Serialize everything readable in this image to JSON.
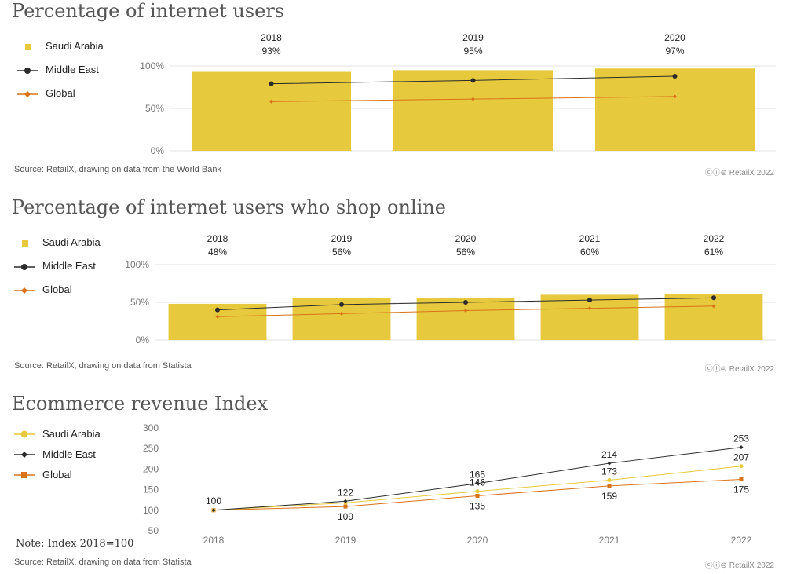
{
  "colors": {
    "saudi": "#e6c93c",
    "middle_east": "#2b2b2b",
    "global": "#d9731a",
    "grid": "#e3e3e3",
    "axis_text": "#777777"
  },
  "credit": {
    "icons": [
      "cc-icon",
      "by-icon",
      "equals-icon"
    ],
    "text": "RetailX 2022"
  },
  "charts": [
    {
      "title": "Percentage of internet users",
      "legend": [
        "Saudi Arabia",
        "Middle East",
        "Global"
      ],
      "source": "Source: RetailX, drawing on data from the World Bank"
    },
    {
      "title": "Percentage of internet users who shop online",
      "legend": [
        "Saudi Arabia",
        "Middle East",
        "Global"
      ],
      "source": "Source: RetailX, drawing on data from Statista"
    },
    {
      "title": "Ecommerce revenue Index",
      "legend": [
        "Saudi Arabia",
        "Middle East",
        "Global"
      ],
      "source": "Source: RetailX, drawing on data from Statista",
      "note": "Note: Index 2018=100"
    }
  ],
  "chart_data": [
    {
      "type": "bar",
      "title": "Percentage of internet users",
      "categories": [
        "2018",
        "2019",
        "2020"
      ],
      "category_labels": [
        "93%",
        "95%",
        "97%"
      ],
      "y_ticks": [
        "0%",
        "50%",
        "100%"
      ],
      "ylim": [
        0,
        100
      ],
      "series": [
        {
          "name": "Saudi Arabia",
          "type": "bar",
          "values": [
            93,
            95,
            97
          ]
        },
        {
          "name": "Middle East",
          "type": "line",
          "values": [
            79,
            83,
            88
          ]
        },
        {
          "name": "Global",
          "type": "line",
          "values": [
            58,
            61,
            64
          ]
        }
      ],
      "legend": "left"
    },
    {
      "type": "bar",
      "title": "Percentage of internet users who shop online",
      "categories": [
        "2018",
        "2019",
        "2020",
        "2021",
        "2022"
      ],
      "category_labels": [
        "48%",
        "56%",
        "56%",
        "60%",
        "61%"
      ],
      "y_ticks": [
        "0%",
        "50%",
        "100%"
      ],
      "ylim": [
        0,
        100
      ],
      "series": [
        {
          "name": "Saudi Arabia",
          "type": "bar",
          "values": [
            48,
            56,
            56,
            60,
            61
          ]
        },
        {
          "name": "Middle East",
          "type": "line",
          "values": [
            40,
            47,
            50,
            53,
            56
          ]
        },
        {
          "name": "Global",
          "type": "line",
          "values": [
            31,
            35,
            39,
            42,
            45
          ]
        }
      ],
      "legend": "left"
    },
    {
      "type": "line",
      "title": "Ecommerce revenue Index",
      "categories": [
        "2018",
        "2019",
        "2020",
        "2021",
        "2022"
      ],
      "y_ticks": [
        "50",
        "100",
        "150",
        "200",
        "250",
        "300"
      ],
      "ylim": [
        50,
        300
      ],
      "series": [
        {
          "name": "Saudi Arabia",
          "values": [
            100,
            118,
            146,
            173,
            207
          ],
          "labels": [
            "",
            "",
            "146",
            "173",
            "207"
          ]
        },
        {
          "name": "Middle East",
          "values": [
            100,
            122,
            165,
            214,
            253
          ],
          "labels": [
            "100",
            "122",
            "165",
            "214",
            "253"
          ]
        },
        {
          "name": "Global",
          "values": [
            100,
            109,
            135,
            159,
            175
          ],
          "labels": [
            "",
            "109",
            "135",
            "159",
            "175"
          ]
        }
      ],
      "legend": "left"
    }
  ]
}
